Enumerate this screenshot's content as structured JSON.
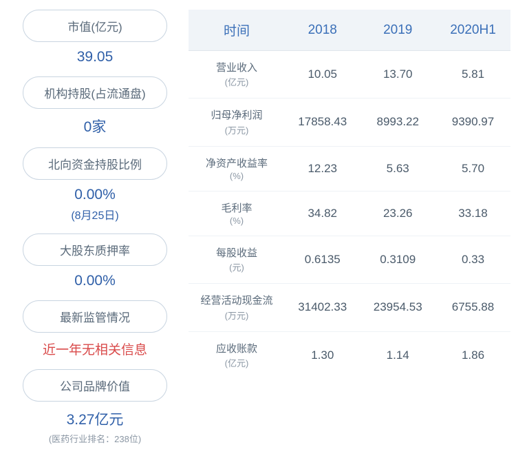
{
  "left": {
    "items": [
      {
        "label": "市值(亿元)",
        "value": "39.05",
        "value_class": "stat-value"
      },
      {
        "label": "机构持股(占流通盘)",
        "value": "0家",
        "value_class": "stat-value"
      },
      {
        "label": "北向资金持股比例",
        "value": "0.00%",
        "sub": "(8月25日)",
        "value_class": "stat-value"
      },
      {
        "label": "大股东质押率",
        "value": "0.00%",
        "value_class": "stat-value"
      },
      {
        "label": "最新监管情况",
        "value": "近一年无相关信息",
        "value_class": "stat-alert"
      },
      {
        "label": "公司品牌价值",
        "value": "3.27亿元",
        "note": "(医药行业排名：238位)",
        "value_class": "stat-value"
      }
    ]
  },
  "table": {
    "headers": [
      "时间",
      "2018",
      "2019",
      "2020H1"
    ],
    "rows": [
      {
        "metric": "营业收入",
        "unit": "(亿元)",
        "v1": "10.05",
        "v2": "13.70",
        "v3": "5.81"
      },
      {
        "metric": "归母净利润",
        "unit": "(万元)",
        "v1": "17858.43",
        "v2": "8993.22",
        "v3": "9390.97"
      },
      {
        "metric": "净资产收益率",
        "unit": "(%)",
        "v1": "12.23",
        "v2": "5.63",
        "v3": "5.70"
      },
      {
        "metric": "毛利率",
        "unit": "(%)",
        "v1": "34.82",
        "v2": "23.26",
        "v3": "33.18"
      },
      {
        "metric": "每股收益",
        "unit": "(元)",
        "v1": "0.6135",
        "v2": "0.3109",
        "v3": "0.33"
      },
      {
        "metric": "经营活动现金流",
        "unit": "(万元)",
        "v1": "31402.33",
        "v2": "23954.53",
        "v3": "6755.88"
      },
      {
        "metric": "应收账款",
        "unit": "(亿元)",
        "v1": "1.30",
        "v2": "1.14",
        "v3": "1.86"
      }
    ]
  },
  "colors": {
    "header_text": "#3a6fb8",
    "header_bg": "#f0f4f8",
    "pill_border": "#c8d4e0",
    "pill_text": "#5a6a7a",
    "value_blue": "#2f5fa8",
    "alert_red": "#d94a4a",
    "cell_text": "#4a5a6a",
    "note_gray": "#8a96a3",
    "row_border": "#eef2f6"
  }
}
